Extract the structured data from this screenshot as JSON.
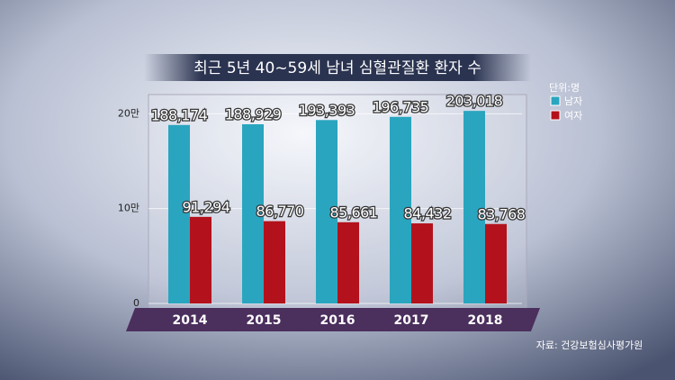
{
  "chart_data": {
    "type": "bar",
    "title": "최근 5년 40~59세 남녀 심혈관질환 환자 수",
    "unit": "단위:명",
    "source": "자료: 건강보험심사평가원",
    "categories": [
      "2014",
      "2015",
      "2016",
      "2017",
      "2018"
    ],
    "series": [
      {
        "name": "남자",
        "color": "#2aa5bf",
        "values": [
          188174,
          188929,
          193393,
          196735,
          203018
        ],
        "value_labels": [
          "188,174",
          "188,929",
          "193,393",
          "196,735",
          "203,018"
        ]
      },
      {
        "name": "여자",
        "color": "#b3121c",
        "values": [
          91294,
          86770,
          85661,
          84432,
          83768
        ],
        "value_labels": [
          "91,294",
          "86,770",
          "85,661",
          "84,432",
          "83,768"
        ]
      }
    ],
    "ylim": [
      0,
      225000
    ],
    "yticks": [
      0,
      {
        "value": 100000,
        "label": "10만"
      },
      {
        "value": 200000,
        "label": "20만"
      }
    ],
    "grid": true
  }
}
